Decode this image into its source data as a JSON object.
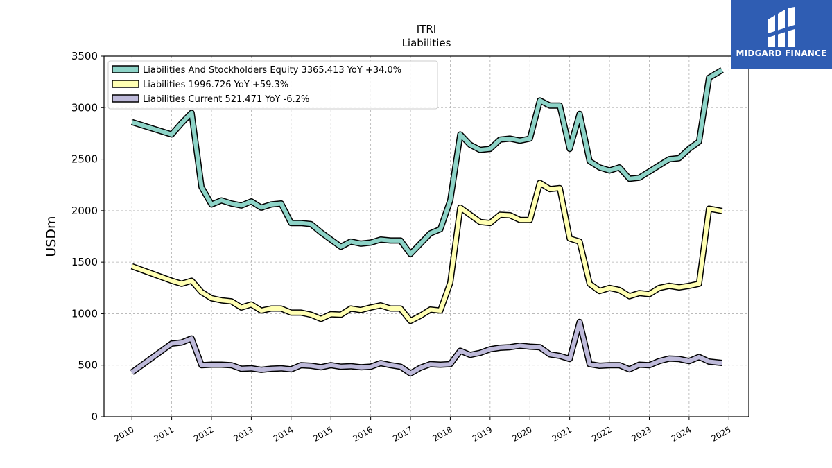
{
  "brand": {
    "name": "MIDGARD FINANCE",
    "color": "#2f5db3"
  },
  "chart_data": {
    "type": "line",
    "title": "ITRI",
    "subtitle": "Liabilities",
    "ylabel": "USDm",
    "xlabel": "",
    "ylim": [
      0,
      3500
    ],
    "xlim": [
      2009.3,
      2025.5
    ],
    "yticks": [
      0,
      500,
      1000,
      1500,
      2000,
      2500,
      3000,
      3500
    ],
    "xticks": [
      2010,
      2011,
      2012,
      2013,
      2014,
      2015,
      2016,
      2017,
      2018,
      2019,
      2020,
      2021,
      2022,
      2023,
      2024,
      2025
    ],
    "grid": true,
    "legend": "top-left",
    "series": [
      {
        "name": "Liabilities And Stockholders Equity",
        "legend_label": "Liabilities And Stockholders Equity  3365.413 YoY +34.0%",
        "color": "#8dd3c7",
        "x": [
          2010.0,
          2011.0,
          2011.25,
          2011.5,
          2011.75,
          2012.0,
          2012.25,
          2012.5,
          2012.75,
          2013.0,
          2013.25,
          2013.5,
          2013.75,
          2014.0,
          2014.25,
          2014.5,
          2014.75,
          2015.0,
          2015.25,
          2015.5,
          2015.75,
          2016.0,
          2016.25,
          2016.5,
          2016.75,
          2017.0,
          2017.25,
          2017.5,
          2017.75,
          2018.0,
          2018.25,
          2018.5,
          2018.75,
          2019.0,
          2019.25,
          2019.5,
          2019.75,
          2020.0,
          2020.25,
          2020.5,
          2020.75,
          2021.0,
          2021.25,
          2021.5,
          2021.75,
          2022.0,
          2022.25,
          2022.5,
          2022.75,
          2023.0,
          2023.25,
          2023.5,
          2023.75,
          2024.0,
          2024.25,
          2024.5,
          2024.83
        ],
        "values": [
          2860,
          2740,
          2850,
          2950,
          2230,
          2060,
          2100,
          2070,
          2050,
          2090,
          2030,
          2060,
          2070,
          1880,
          1880,
          1870,
          1790,
          1720,
          1650,
          1700,
          1680,
          1690,
          1720,
          1710,
          1710,
          1580,
          1680,
          1780,
          1820,
          2100,
          2740,
          2640,
          2590,
          2600,
          2690,
          2700,
          2680,
          2700,
          3070,
          3020,
          3020,
          2600,
          2940,
          2480,
          2420,
          2390,
          2420,
          2310,
          2320,
          2380,
          2440,
          2500,
          2510,
          2600,
          2670,
          3290,
          3365.413
        ]
      },
      {
        "name": "Liabilities",
        "legend_label": "Liabilities  1996.726 YoY +59.3%",
        "color": "#ffffb3",
        "x": [
          2010.0,
          2011.0,
          2011.25,
          2011.5,
          2011.75,
          2012.0,
          2012.25,
          2012.5,
          2012.75,
          2013.0,
          2013.25,
          2013.5,
          2013.75,
          2014.0,
          2014.25,
          2014.5,
          2014.75,
          2015.0,
          2015.25,
          2015.5,
          2015.75,
          2016.0,
          2016.25,
          2016.5,
          2016.75,
          2017.0,
          2017.25,
          2017.5,
          2017.75,
          2018.0,
          2018.25,
          2018.5,
          2018.75,
          2019.0,
          2019.25,
          2019.5,
          2019.75,
          2020.0,
          2020.25,
          2020.5,
          2020.75,
          2021.0,
          2021.25,
          2021.5,
          2021.75,
          2022.0,
          2022.25,
          2022.5,
          2022.75,
          2023.0,
          2023.25,
          2023.5,
          2023.75,
          2024.0,
          2024.25,
          2024.5,
          2024.83
        ],
        "values": [
          1460,
          1320,
          1290,
          1320,
          1210,
          1150,
          1130,
          1120,
          1060,
          1090,
          1030,
          1050,
          1050,
          1010,
          1010,
          990,
          950,
          995,
          990,
          1050,
          1035,
          1060,
          1080,
          1050,
          1050,
          930,
          980,
          1040,
          1030,
          1300,
          2030,
          1960,
          1890,
          1880,
          1960,
          1955,
          1910,
          1910,
          2270,
          2210,
          2220,
          1730,
          1700,
          1290,
          1220,
          1250,
          1230,
          1170,
          1200,
          1190,
          1250,
          1270,
          1255,
          1270,
          1290,
          2020,
          1996.726
        ]
      },
      {
        "name": "Liabilities Current",
        "legend_label": "Liabilities Current  521.471 YoY -6.2%",
        "color": "#bebada",
        "x": [
          2010.0,
          2011.0,
          2011.25,
          2011.5,
          2011.75,
          2012.0,
          2012.25,
          2012.5,
          2012.75,
          2013.0,
          2013.25,
          2013.5,
          2013.75,
          2014.0,
          2014.25,
          2014.5,
          2014.75,
          2015.0,
          2015.25,
          2015.5,
          2015.75,
          2016.0,
          2016.25,
          2016.5,
          2016.75,
          2017.0,
          2017.25,
          2017.5,
          2017.75,
          2018.0,
          2018.25,
          2018.5,
          2018.75,
          2019.0,
          2019.25,
          2019.5,
          2019.75,
          2020.0,
          2020.25,
          2020.5,
          2020.75,
          2021.0,
          2021.25,
          2021.5,
          2021.75,
          2022.0,
          2022.25,
          2022.5,
          2022.75,
          2023.0,
          2023.25,
          2023.5,
          2023.75,
          2024.0,
          2024.25,
          2024.5,
          2024.83
        ],
        "values": [
          430,
          710,
          720,
          760,
          500,
          505,
          505,
          500,
          465,
          470,
          455,
          465,
          470,
          460,
          500,
          495,
          480,
          500,
          485,
          490,
          480,
          485,
          520,
          500,
          485,
          420,
          475,
          510,
          505,
          510,
          640,
          600,
          620,
          655,
          670,
          675,
          690,
          680,
          675,
          605,
          590,
          560,
          920,
          510,
          495,
          500,
          500,
          460,
          505,
          500,
          540,
          565,
          560,
          540,
          580,
          535,
          521.471
        ]
      }
    ]
  }
}
